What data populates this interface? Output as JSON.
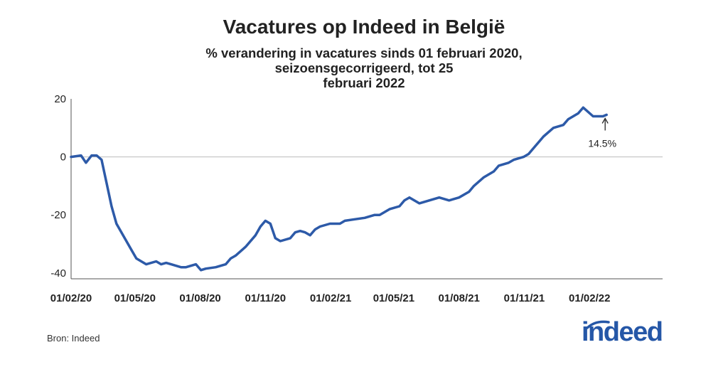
{
  "chart_data": {
    "type": "line",
    "title": "Vacatures op Indeed in België",
    "subtitle_lines": [
      "% verandering in vacatures sinds 01 februari 2020,",
      "seizoensgecorrigeerd, tot 25",
      "februari 2022"
    ],
    "xlabel": "",
    "ylabel": "",
    "x_range": [
      "2020-02-01",
      "2022-05-15"
    ],
    "ylim": [
      -42,
      20
    ],
    "yticks": [
      20,
      0,
      -20,
      -40
    ],
    "xticks": [
      "01/02/20",
      "01/05/20",
      "01/08/20",
      "01/11/20",
      "01/02/21",
      "01/05/21",
      "01/08/21",
      "01/11/21",
      "01/02/22"
    ],
    "zero_line": true,
    "grid": false,
    "legend": "none",
    "line_color": "#2d5aa8",
    "annotation": {
      "text": "14.5%",
      "date": "2022-02-25",
      "value": 14.5
    },
    "series": [
      {
        "x": [
          "2020-02-01",
          "2020-02-15",
          "2020-02-22",
          "2020-03-01",
          "2020-03-08",
          "2020-03-15",
          "2020-03-22",
          "2020-03-29",
          "2020-04-05",
          "2020-04-12",
          "2020-04-19",
          "2020-04-26",
          "2020-05-03",
          "2020-05-17",
          "2020-05-31",
          "2020-06-07",
          "2020-06-14",
          "2020-06-21",
          "2020-07-05",
          "2020-07-12",
          "2020-07-26",
          "2020-08-02",
          "2020-08-09",
          "2020-08-23",
          "2020-09-06",
          "2020-09-13",
          "2020-09-20",
          "2020-10-04",
          "2020-10-18",
          "2020-10-25",
          "2020-11-01",
          "2020-11-08",
          "2020-11-15",
          "2020-11-22",
          "2020-12-06",
          "2020-12-13",
          "2020-12-20",
          "2020-12-27",
          "2021-01-03",
          "2021-01-10",
          "2021-01-17",
          "2021-01-31",
          "2021-02-14",
          "2021-02-21",
          "2021-03-07",
          "2021-03-21",
          "2021-04-04",
          "2021-04-11",
          "2021-04-25",
          "2021-05-09",
          "2021-05-16",
          "2021-05-23",
          "2021-06-06",
          "2021-06-20",
          "2021-07-04",
          "2021-07-18",
          "2021-08-01",
          "2021-08-15",
          "2021-08-22",
          "2021-09-05",
          "2021-09-19",
          "2021-09-26",
          "2021-10-10",
          "2021-10-17",
          "2021-10-31",
          "2021-11-07",
          "2021-11-14",
          "2021-11-28",
          "2021-12-12",
          "2021-12-26",
          "2022-01-02",
          "2022-01-09",
          "2022-01-16",
          "2022-01-23",
          "2022-02-06",
          "2022-02-20",
          "2022-02-25"
        ],
        "values": [
          0,
          0.5,
          -2,
          0.5,
          0.5,
          -1,
          -9,
          -17,
          -23,
          -26,
          -29,
          -32,
          -35,
          -37,
          -36,
          -37,
          -36.5,
          -37,
          -38,
          -38,
          -37,
          -39,
          -38.5,
          -38,
          -37,
          -35,
          -34,
          -31,
          -27,
          -24,
          -22,
          -23,
          -28,
          -29,
          -28,
          -26,
          -25.5,
          -26,
          -27,
          -25,
          -24,
          -23,
          -23,
          -22,
          -21.5,
          -21,
          -20,
          -20,
          -18,
          -17,
          -15,
          -14,
          -16,
          -15,
          -14,
          -15,
          -14,
          -12,
          -10,
          -7,
          -5,
          -3,
          -2,
          -1,
          0,
          1,
          3,
          7,
          10,
          11,
          13,
          14,
          15,
          17,
          14,
          14,
          14.5
        ]
      }
    ],
    "source": "Bron: Indeed",
    "logo": "indeed"
  }
}
